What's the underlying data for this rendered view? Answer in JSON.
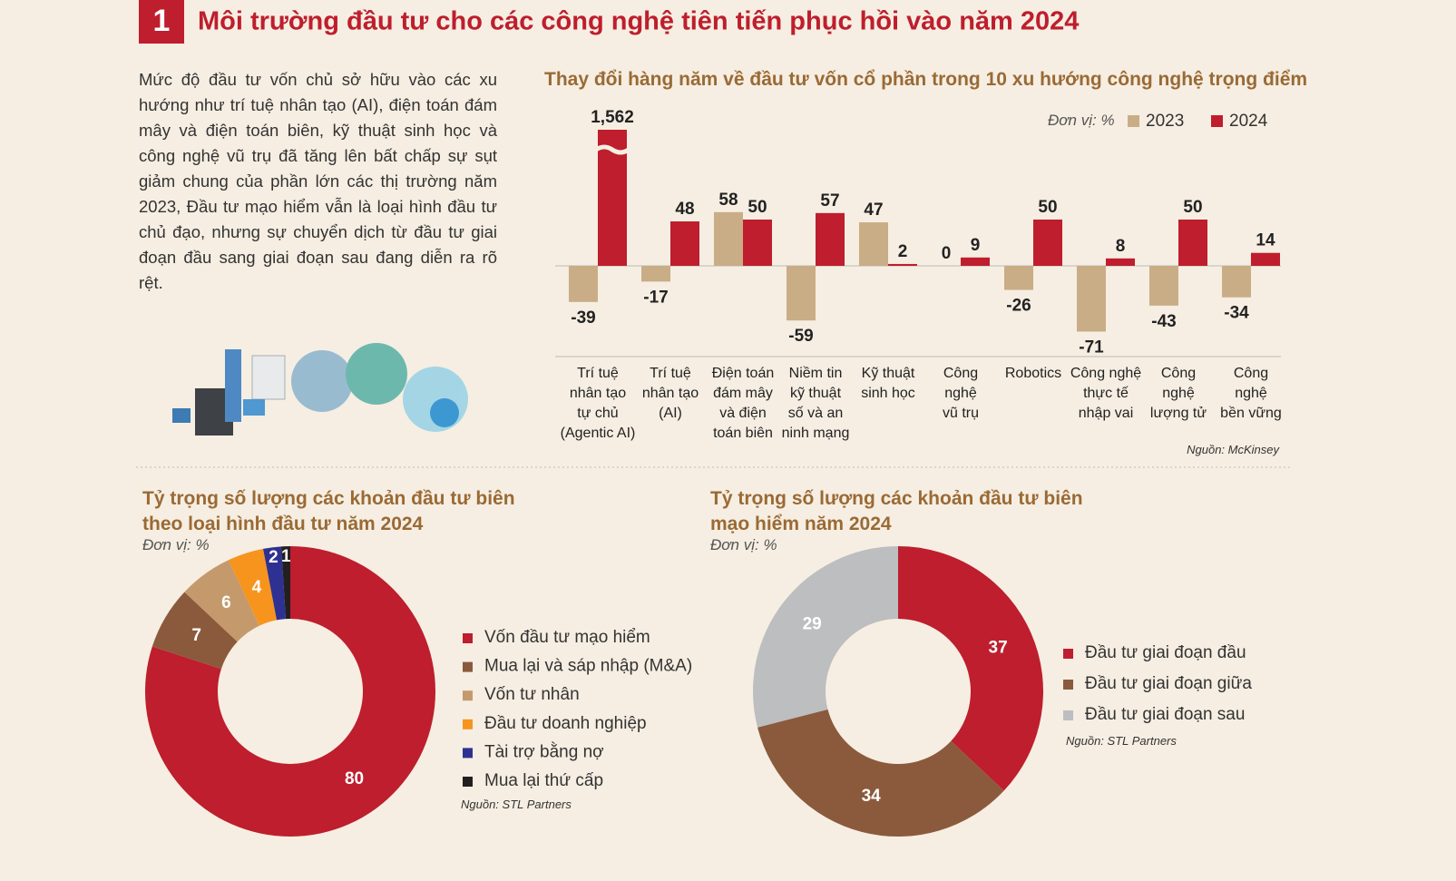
{
  "header": {
    "number": "1",
    "title": "Môi trường đầu tư cho các công nghệ tiên tiến phục hồi vào năm 2024"
  },
  "intro": "Mức độ đầu tư vốn chủ sở hữu vào các xu hướng như trí tuệ nhân tạo (AI), điện toán đám mây và điện toán biên, kỹ thuật sinh học và công nghệ vũ trụ đã tăng lên bất chấp sự sụt giảm chung của phần lớn các thị trường năm 2023, Đầu tư mạo hiểm vẫn là loại hình đầu tư chủ đạo, nhưng sự chuyển dịch từ đầu tư giai đoạn đầu sang giai đoạn sau đang diễn ra rõ rệt.",
  "chart_data": [
    {
      "type": "bar",
      "title": "Thay đổi hàng năm về đầu tư vốn cổ phần trong 10 xu hướng công nghệ trọng điểm",
      "unit": "Đơn vị: %",
      "source": "Nguồn: McKinsey",
      "categories": [
        "Trí tuệ\nnhân tạo\ntự chủ\n(Agentic AI)",
        "Trí tuệ\nnhân tạo\n(AI)",
        "Điện toán\nđám mây\nvà điện\ntoán biên",
        "Niềm tin\nkỹ thuật\nsố và an\nninh mạng",
        "Kỹ thuật\nsinh học",
        "Công\nnghệ\nvũ trụ",
        "Robotics",
        "Công nghệ\nthực tế\nnhập vai",
        "Công\nnghệ\nlượng tử",
        "Công\nnghệ\nbền vững"
      ],
      "series": [
        {
          "name": "2023",
          "color": "#c9ad86",
          "values": [
            -39,
            -17,
            58,
            -59,
            47,
            0,
            -26,
            -71,
            -43,
            -34
          ]
        },
        {
          "name": "2024",
          "color": "#be1e2d",
          "values": [
            1562,
            48,
            50,
            57,
            2,
            9,
            50,
            8,
            50,
            14
          ],
          "value_labels": [
            "1,562",
            "48",
            "50",
            "57",
            "2",
            "9",
            "50",
            "8",
            "50",
            "14"
          ]
        }
      ],
      "ylim": [
        -98,
        147
      ]
    },
    {
      "type": "donut",
      "title": "Tỷ trọng số lượng các khoản đầu tư biên\ntheo loại hình đầu tư năm 2024",
      "unit": "Đơn vị: %",
      "source": "Nguồn: STL Partners",
      "categories": [
        "Vốn đầu tư mạo hiểm",
        "Mua lại và sáp nhập (M&A)",
        "Vốn tư nhân",
        "Đầu tư doanh nghiệp",
        "Tài trợ bằng nợ",
        "Mua lại thứ cấp"
      ],
      "values": [
        80,
        7,
        6,
        4,
        2,
        1
      ],
      "colors": [
        "#be1e2d",
        "#8b5a3c",
        "#c49a6c",
        "#f7941d",
        "#2e3192",
        "#231f20"
      ]
    },
    {
      "type": "donut",
      "title": "Tỷ trọng số lượng các khoản đầu tư biên\nmạo hiểm năm 2024",
      "unit": "Đơn vị: %",
      "source": "Nguồn: STL Partners",
      "categories": [
        "Đầu tư giai đoạn đầu",
        "Đầu tư giai đoạn giữa",
        "Đầu tư giai đoạn sau"
      ],
      "values": [
        37,
        34,
        29
      ],
      "colors": [
        "#be1e2d",
        "#8b5a3c",
        "#bcbec0"
      ]
    }
  ]
}
